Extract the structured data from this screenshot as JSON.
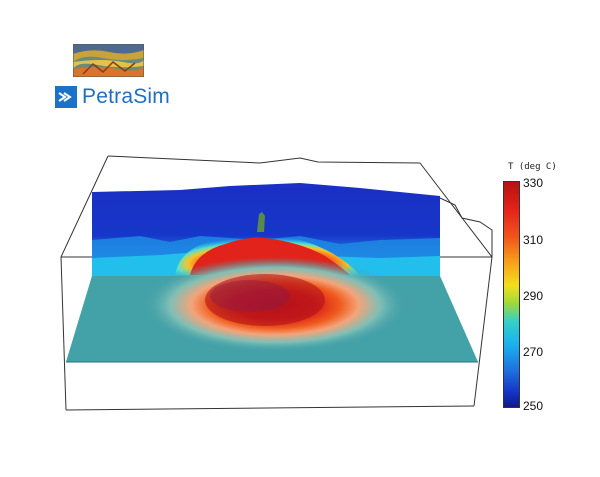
{
  "brand": {
    "name": "PetraSim",
    "accent": "#1a73c9"
  },
  "colorbar": {
    "title": "T (deg C)",
    "ticks": [
      "330",
      "310",
      "290",
      "270",
      "250"
    ],
    "min": 250,
    "max": 330
  },
  "icons": {
    "brand_mark": "petrasim-arrow-icon",
    "thumbnail": "geology-thumbnail-icon"
  }
}
